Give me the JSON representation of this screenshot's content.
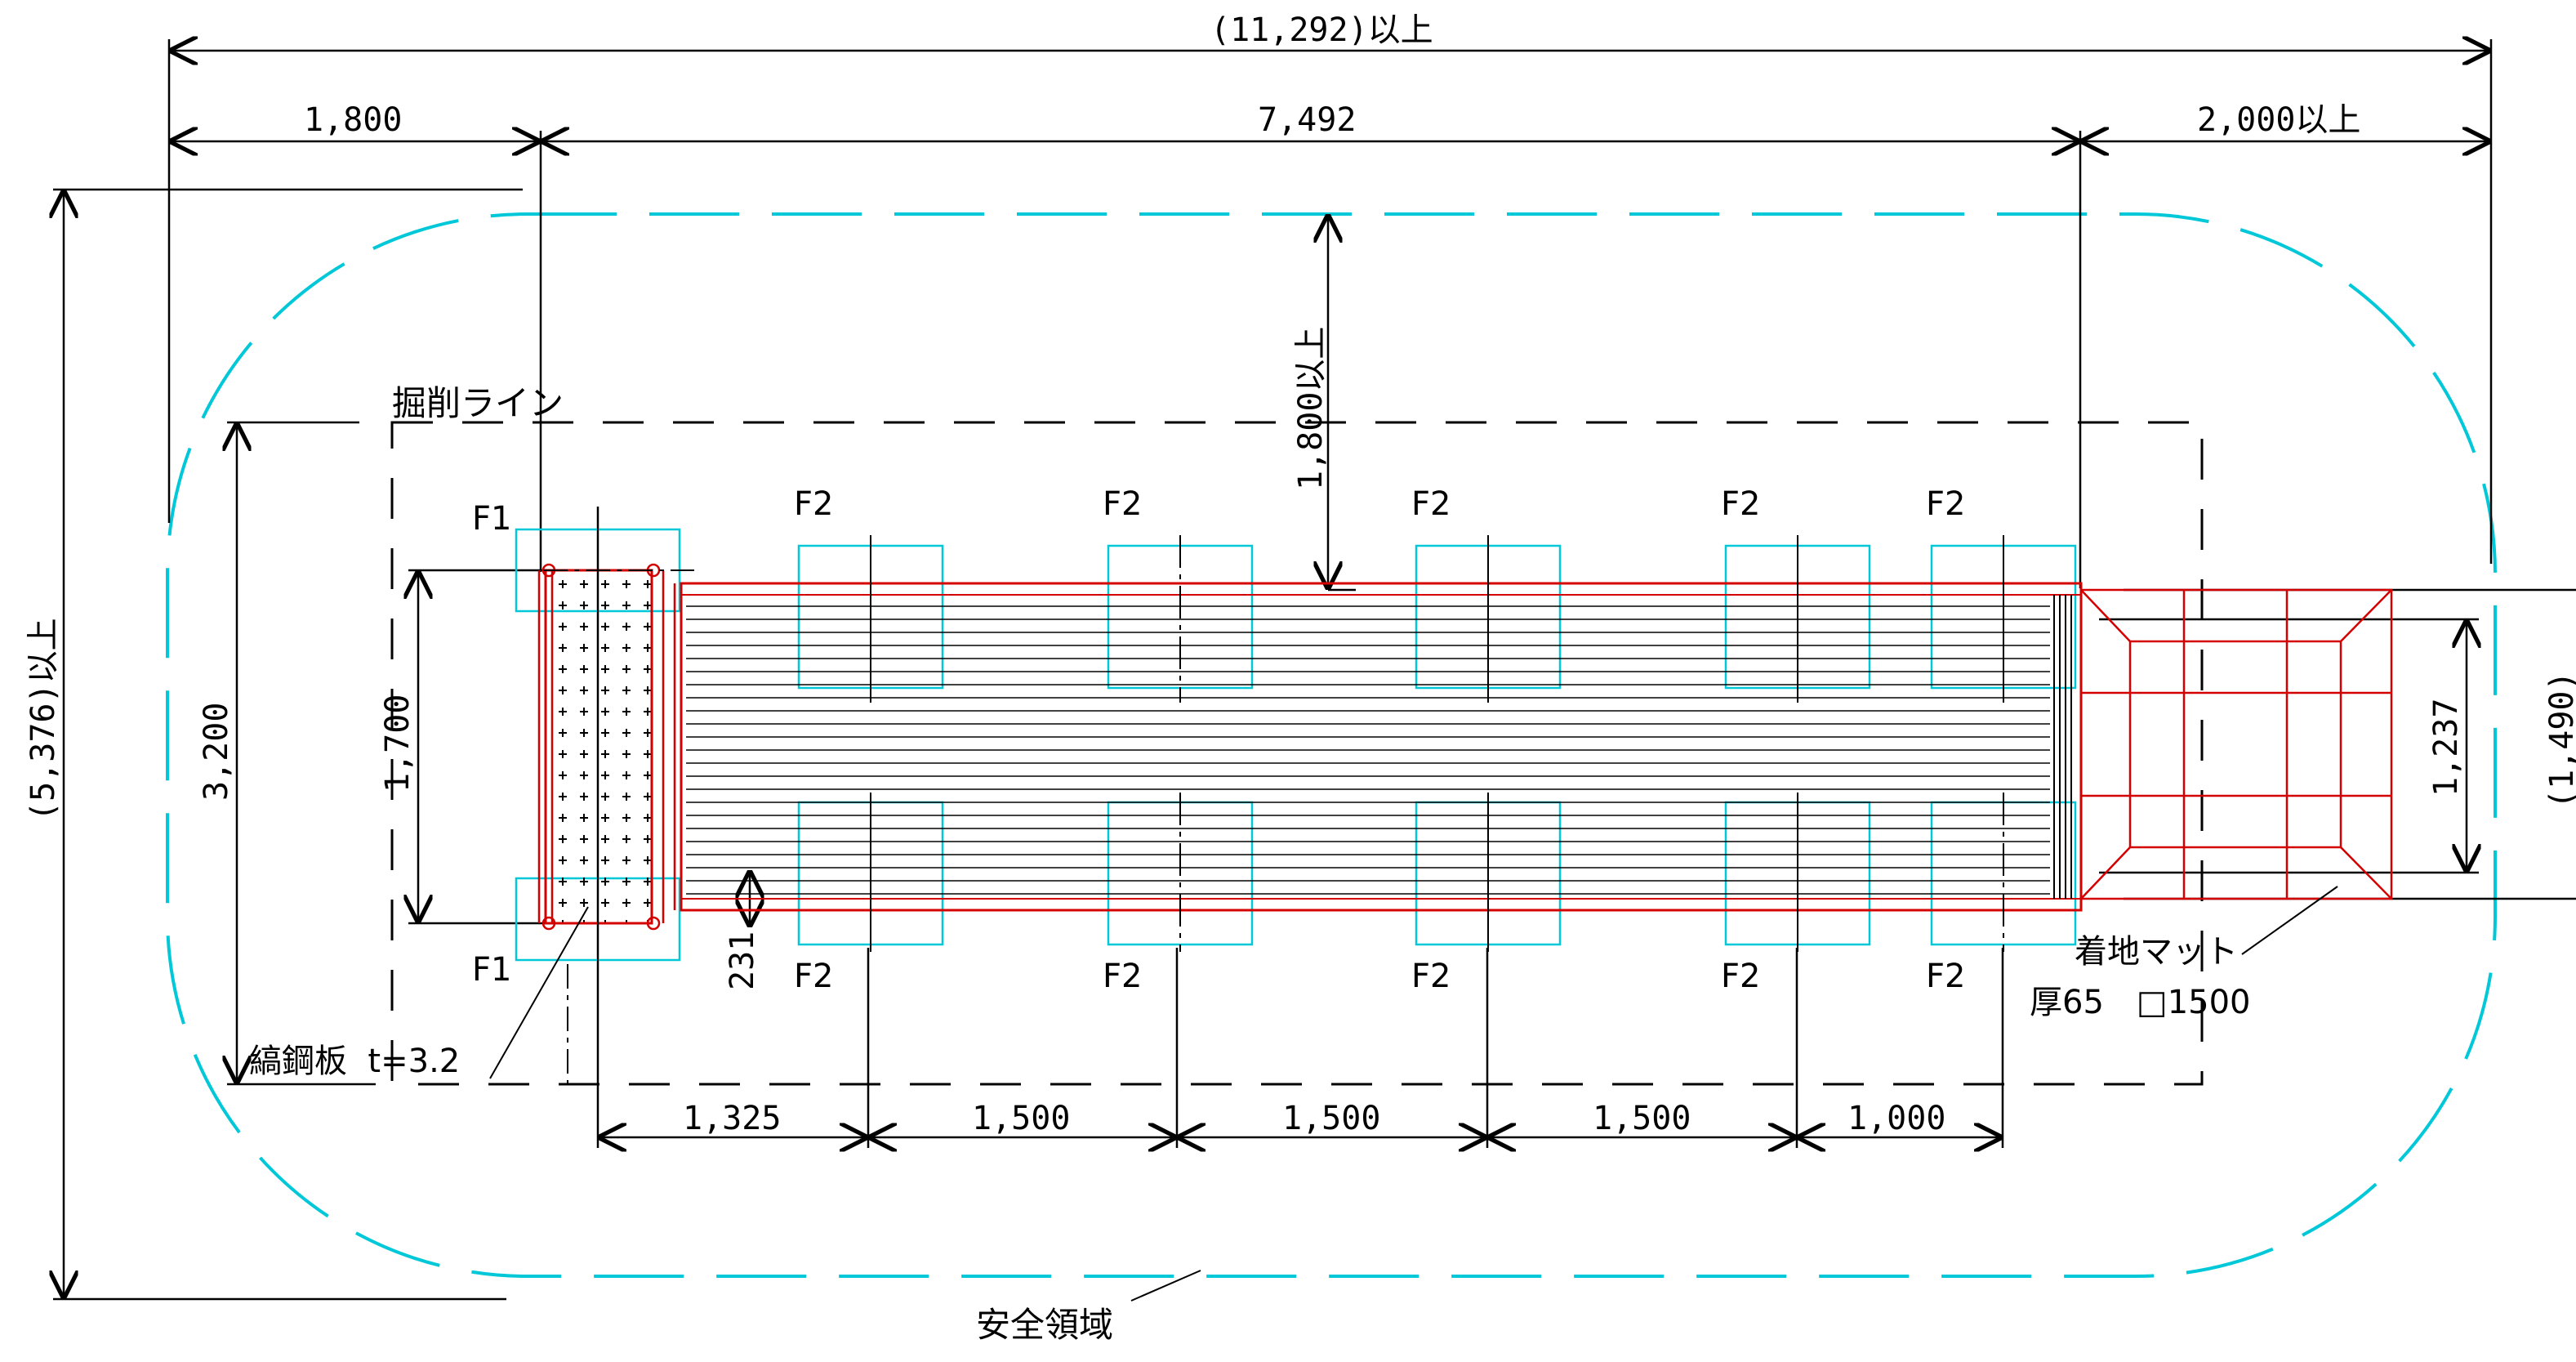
{
  "colors": {
    "safety": "#00c8d8",
    "structure": "#d40000",
    "line": "#000000",
    "dash": "#000000",
    "footing": "#00c8d8"
  },
  "dimensions": {
    "total_width": "(11,292)以上",
    "left": "1,800",
    "middle": "7,492",
    "right": "2,000以上",
    "total_height": "(5,376)以上",
    "excavation_height": "3,200",
    "beam_width": "1,700",
    "clearance": "1,800以上",
    "mat_width": "1,237",
    "mat_outer": "(1,490)",
    "offset": "231",
    "bottom": [
      "1,325",
      "1,500",
      "1,500",
      "1,500",
      "1,000"
    ]
  },
  "labels": {
    "excavation_line": "掘削ライン",
    "checker_plate": "縞鋼板  t=3.2",
    "landing_mat": "着地マット",
    "mat_spec": "厚65　□1500",
    "safety_area": "安全領域"
  },
  "footings": {
    "f1": "F1",
    "f2": "F2"
  }
}
